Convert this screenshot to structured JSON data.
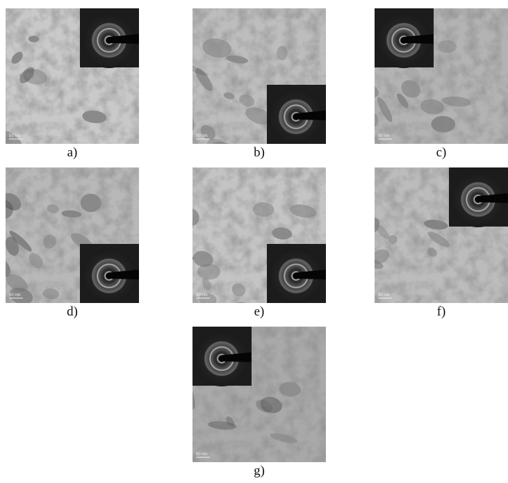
{
  "panels": [
    {
      "label": "a)",
      "scale": "50 nm"
    },
    {
      "label": "b)",
      "scale": "50 nm"
    },
    {
      "label": "c)",
      "scale": "50 nm"
    },
    {
      "label": "d)",
      "scale": "50 nm"
    },
    {
      "label": "e)",
      "scale": "50 nm"
    },
    {
      "label": "f)",
      "scale": "50 nm"
    },
    {
      "label": "g)",
      "scale": "50 nm"
    }
  ]
}
